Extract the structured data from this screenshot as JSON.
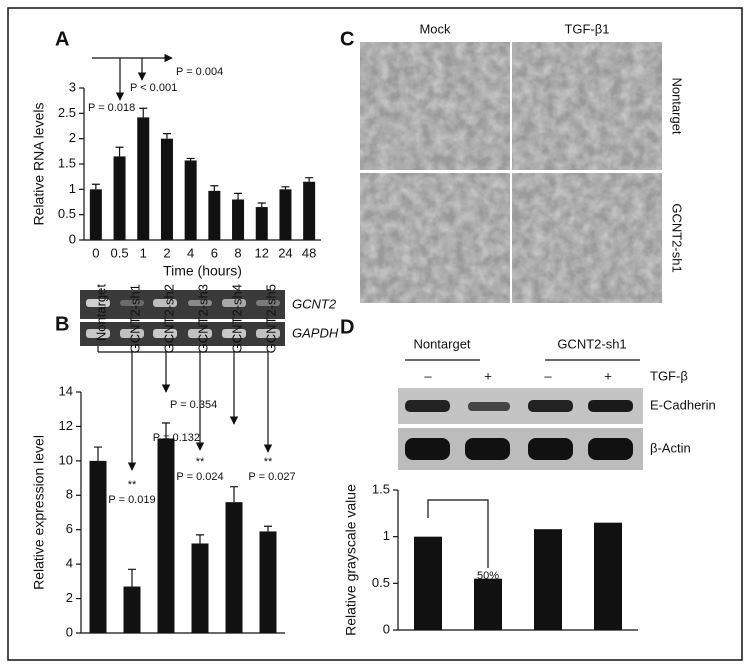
{
  "panels": [
    "A",
    "B",
    "C",
    "D"
  ],
  "chart_data": [
    {
      "type": "bar",
      "xlabel": "Time (hours)",
      "ylabel": "Relative RNA levels",
      "categories": [
        "0",
        "0.5",
        "1",
        "2",
        "4",
        "6",
        "8",
        "12",
        "24",
        "48"
      ],
      "values": [
        1.0,
        1.65,
        2.42,
        2.0,
        1.57,
        0.97,
        0.8,
        0.65,
        1.0,
        1.15
      ],
      "errors": [
        0.1,
        0.18,
        0.18,
        0.1,
        0.04,
        0.1,
        0.12,
        0.08,
        0.05,
        0.08
      ],
      "color": "#111111",
      "ylim": [
        0,
        3
      ],
      "yticks": [
        0,
        0.5,
        1,
        1.5,
        2,
        2.5,
        3
      ],
      "annotations": [
        "P = 0.018",
        "P < 0.001",
        "P = 0.004"
      ]
    },
    {
      "type": "bar",
      "ylabel": "Relative expression level",
      "categories": [
        "Nontarget",
        "GCNT2-sh1",
        "GCNT2-sh2",
        "GCNT2-sh3",
        "GCNT2-sh4",
        "GCNT2-sh5"
      ],
      "values": [
        10,
        2.7,
        11.3,
        5.2,
        7.6,
        5.9
      ],
      "errors": [
        0.8,
        1.0,
        0.9,
        0.5,
        0.9,
        0.3
      ],
      "color": "#111111",
      "ylim": [
        0,
        14
      ],
      "yticks": [
        0,
        2,
        4,
        6,
        8,
        10,
        12,
        14
      ],
      "annotations": [
        "**",
        "P = 0.019",
        "P = 0.354",
        "**",
        "P = 0.024",
        "P = 0.132",
        "**",
        "P = 0.027"
      ]
    },
    {
      "type": "bar",
      "ylabel": "Relative grayscale value",
      "categories": [
        null,
        null,
        null,
        null
      ],
      "values": [
        1,
        0.55,
        1.08,
        1.15
      ],
      "color": "#111111",
      "ylim": [
        0,
        1.5
      ],
      "yticks": [
        0,
        0.5,
        1,
        1.5
      ],
      "annotations": [
        "50%"
      ]
    }
  ],
  "gel_b": {
    "bands": [
      "GCNT2",
      "GAPDH"
    ]
  },
  "micrographs": {
    "columns": [
      "Mock",
      "TGF-β1"
    ],
    "rows": [
      "Nontarget",
      "GCNT2-sh1"
    ]
  },
  "gel_d": {
    "groups": [
      "Nontarget",
      "GCNT2-sh1"
    ],
    "treatment": [
      "–",
      "+",
      "–",
      "+"
    ],
    "treatment_label": "TGF-β",
    "bands": [
      "E-Cadherin",
      "β-Actin"
    ]
  }
}
